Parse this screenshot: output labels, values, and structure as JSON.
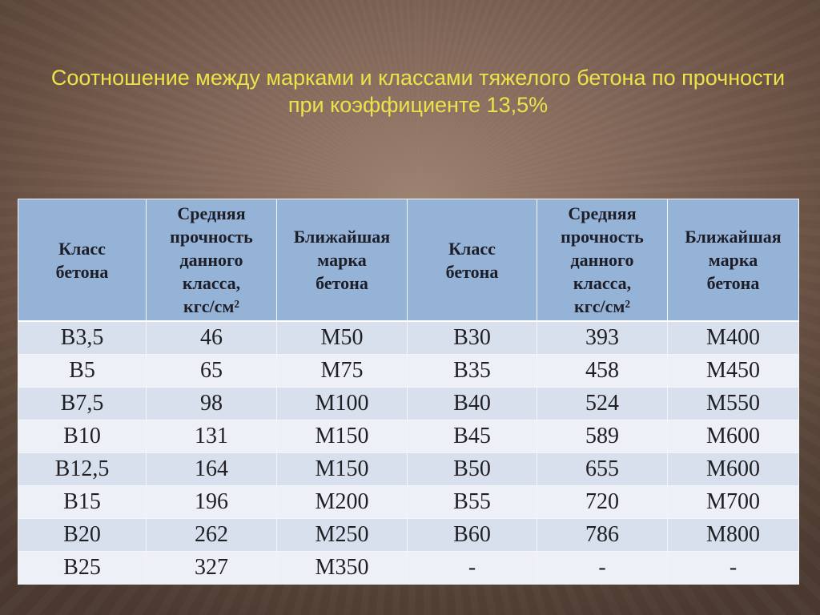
{
  "slide": {
    "title": {
      "line1": "Соотношение между марками и классами тяжелого бетона по прочности",
      "line2": "при коэффициенте 13,5%"
    }
  },
  "table": {
    "headers": [
      {
        "lines": [
          "Класс",
          "бетона"
        ]
      },
      {
        "lines": [
          "Средняя",
          "прочность",
          "данного",
          "класса,",
          "кгс/см²"
        ]
      },
      {
        "lines": [
          "Ближайшая",
          "марка",
          "бетона"
        ]
      },
      {
        "lines": [
          "Класс",
          "бетона"
        ]
      },
      {
        "lines": [
          "Средняя",
          "прочность",
          "данного",
          "класса,",
          "кгс/см²"
        ]
      },
      {
        "lines": [
          "Ближайшая",
          "марка",
          "бетона"
        ]
      }
    ],
    "rows": [
      {
        "class_1": "В3,5",
        "strength_1": "46",
        "grade_1": "М50",
        "class_2": "В30",
        "strength_2": "393",
        "grade_2": "М400"
      },
      {
        "class_1": "В5",
        "strength_1": "65",
        "grade_1": "М75",
        "class_2": "В35",
        "strength_2": "458",
        "grade_2": "М450"
      },
      {
        "class_1": "В7,5",
        "strength_1": "98",
        "grade_1": "М100",
        "class_2": "В40",
        "strength_2": "524",
        "grade_2": "М550"
      },
      {
        "class_1": "В10",
        "strength_1": "131",
        "grade_1": "М150",
        "class_2": "В45",
        "strength_2": "589",
        "grade_2": "М600"
      },
      {
        "class_1": "В12,5",
        "strength_1": "164",
        "grade_1": "М150",
        "class_2": "В50",
        "strength_2": "655",
        "grade_2": "М600"
      },
      {
        "class_1": "В15",
        "strength_1": "196",
        "grade_1": "М200",
        "class_2": "В55",
        "strength_2": "720",
        "grade_2": "М700"
      },
      {
        "class_1": "В20",
        "strength_1": "262",
        "grade_1": "М250",
        "class_2": "В60",
        "strength_2": "786",
        "grade_2": "М800"
      },
      {
        "class_1": "В25",
        "strength_1": "327",
        "grade_1": "М350",
        "class_2": "-",
        "strength_2": "-",
        "grade_2": "-"
      }
    ]
  },
  "colors": {
    "title": "#ede24a",
    "header_bg": "#95b3d7",
    "row_odd": "#d7e0ec",
    "row_even": "#edf1f7"
  }
}
